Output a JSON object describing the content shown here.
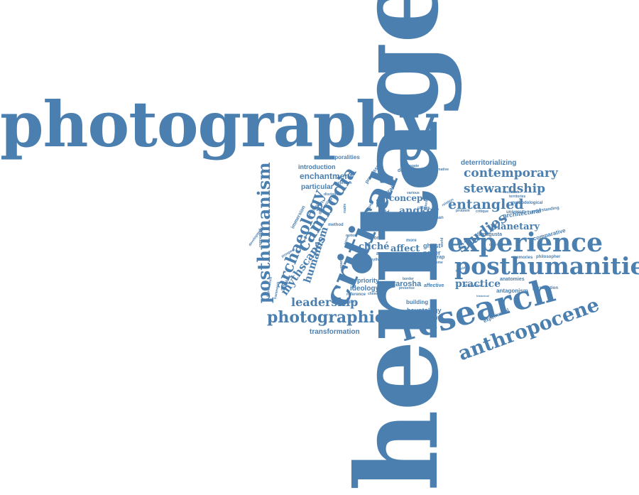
{
  "accent_color": "#4a7fb0",
  "background_color": "#ffffff",
  "words": {
    "photography": "photography",
    "heritage": "heritage",
    "critical": "critical",
    "research": "research",
    "posthumanities": "posthumanities",
    "experience": "experience",
    "anthropocene": "anthropocene",
    "posthumanism": "posthumanism",
    "archaeology": "archaeology",
    "cambodia": "cambodia",
    "photographic": "photographic",
    "contemporary": "contemporary",
    "stewardship": "stewardship",
    "entangled": "entangled",
    "studies": "studies",
    "planetary": "planetary",
    "leadership": "leadership",
    "deterritorializing": "deterritorializing",
    "enchantment": "enchantment",
    "introduction": "introduction",
    "temporalities": "temporalities",
    "particular": "particular",
    "humanism": "humanism",
    "mythscapes": "mythscapes",
    "angkor": "angkor",
    "concept": "concept",
    "affect": "affect",
    "cliche": "cliché",
    "ideology": "ideology",
    "priority": "priority",
    "varosha": "varosha",
    "practice": "practice",
    "transformation": "transformation",
    "architectural": "architectural",
    "hauntology": "hauntology",
    "autonomy": "autonomy",
    "building": "building",
    "ghost": "ghost",
    "paper": "paper",
    "affective": "affective",
    "antagonism": "antagonism",
    "anatomies": "anatomies",
    "preservation": "preservation",
    "comparative": "comparative",
    "memories": "memories",
    "philosopher": "philosopher",
    "experiential": "experiential",
    "famagusta": "famagusta",
    "university": "university",
    "understanding": "understanding",
    "methodological": "methodological",
    "territories": "territories",
    "mundane": "mundane",
    "problem": "problem",
    "critique": "critique",
    "human": "human",
    "spectral": "spectral",
    "field": "field",
    "politic": "politic",
    "engage": "engage",
    "interrogate": "interrogate",
    "departure": "departure",
    "alternative": "alternative",
    "processes": "processes",
    "position": "position",
    "immersion": "immersion",
    "designing": "designing",
    "method": "method",
    "prospect": "prospect",
    "development": "development",
    "conceptual": "conceptual",
    "significance": "significance",
    "framework": "framework",
    "rethinking": "rethinking",
    "work": "work",
    "area": "area",
    "more": "more",
    "reference": "reference",
    "chinese": "chinese",
    "implication": "implication",
    "border": "border",
    "presence": "presence",
    "wrap": "wrap",
    "archival": "archival",
    "discursive": "discursive",
    "historical": "historical",
    "different": "different",
    "approach": "approach",
    "discipline": "discipline",
    "collage": "collage",
    "case": "case",
    "myth": "myth",
    "within": "within",
    "ever": "ever",
    "relation": "relation",
    "various": "various",
    "potential": "potential",
    "sense": "sense",
    "notion": "notion",
    "place": "place",
    "space": "space",
    "realm": "realm",
    "like": "like",
    "time": "time",
    "theme": "theme",
    "world": "world"
  }
}
